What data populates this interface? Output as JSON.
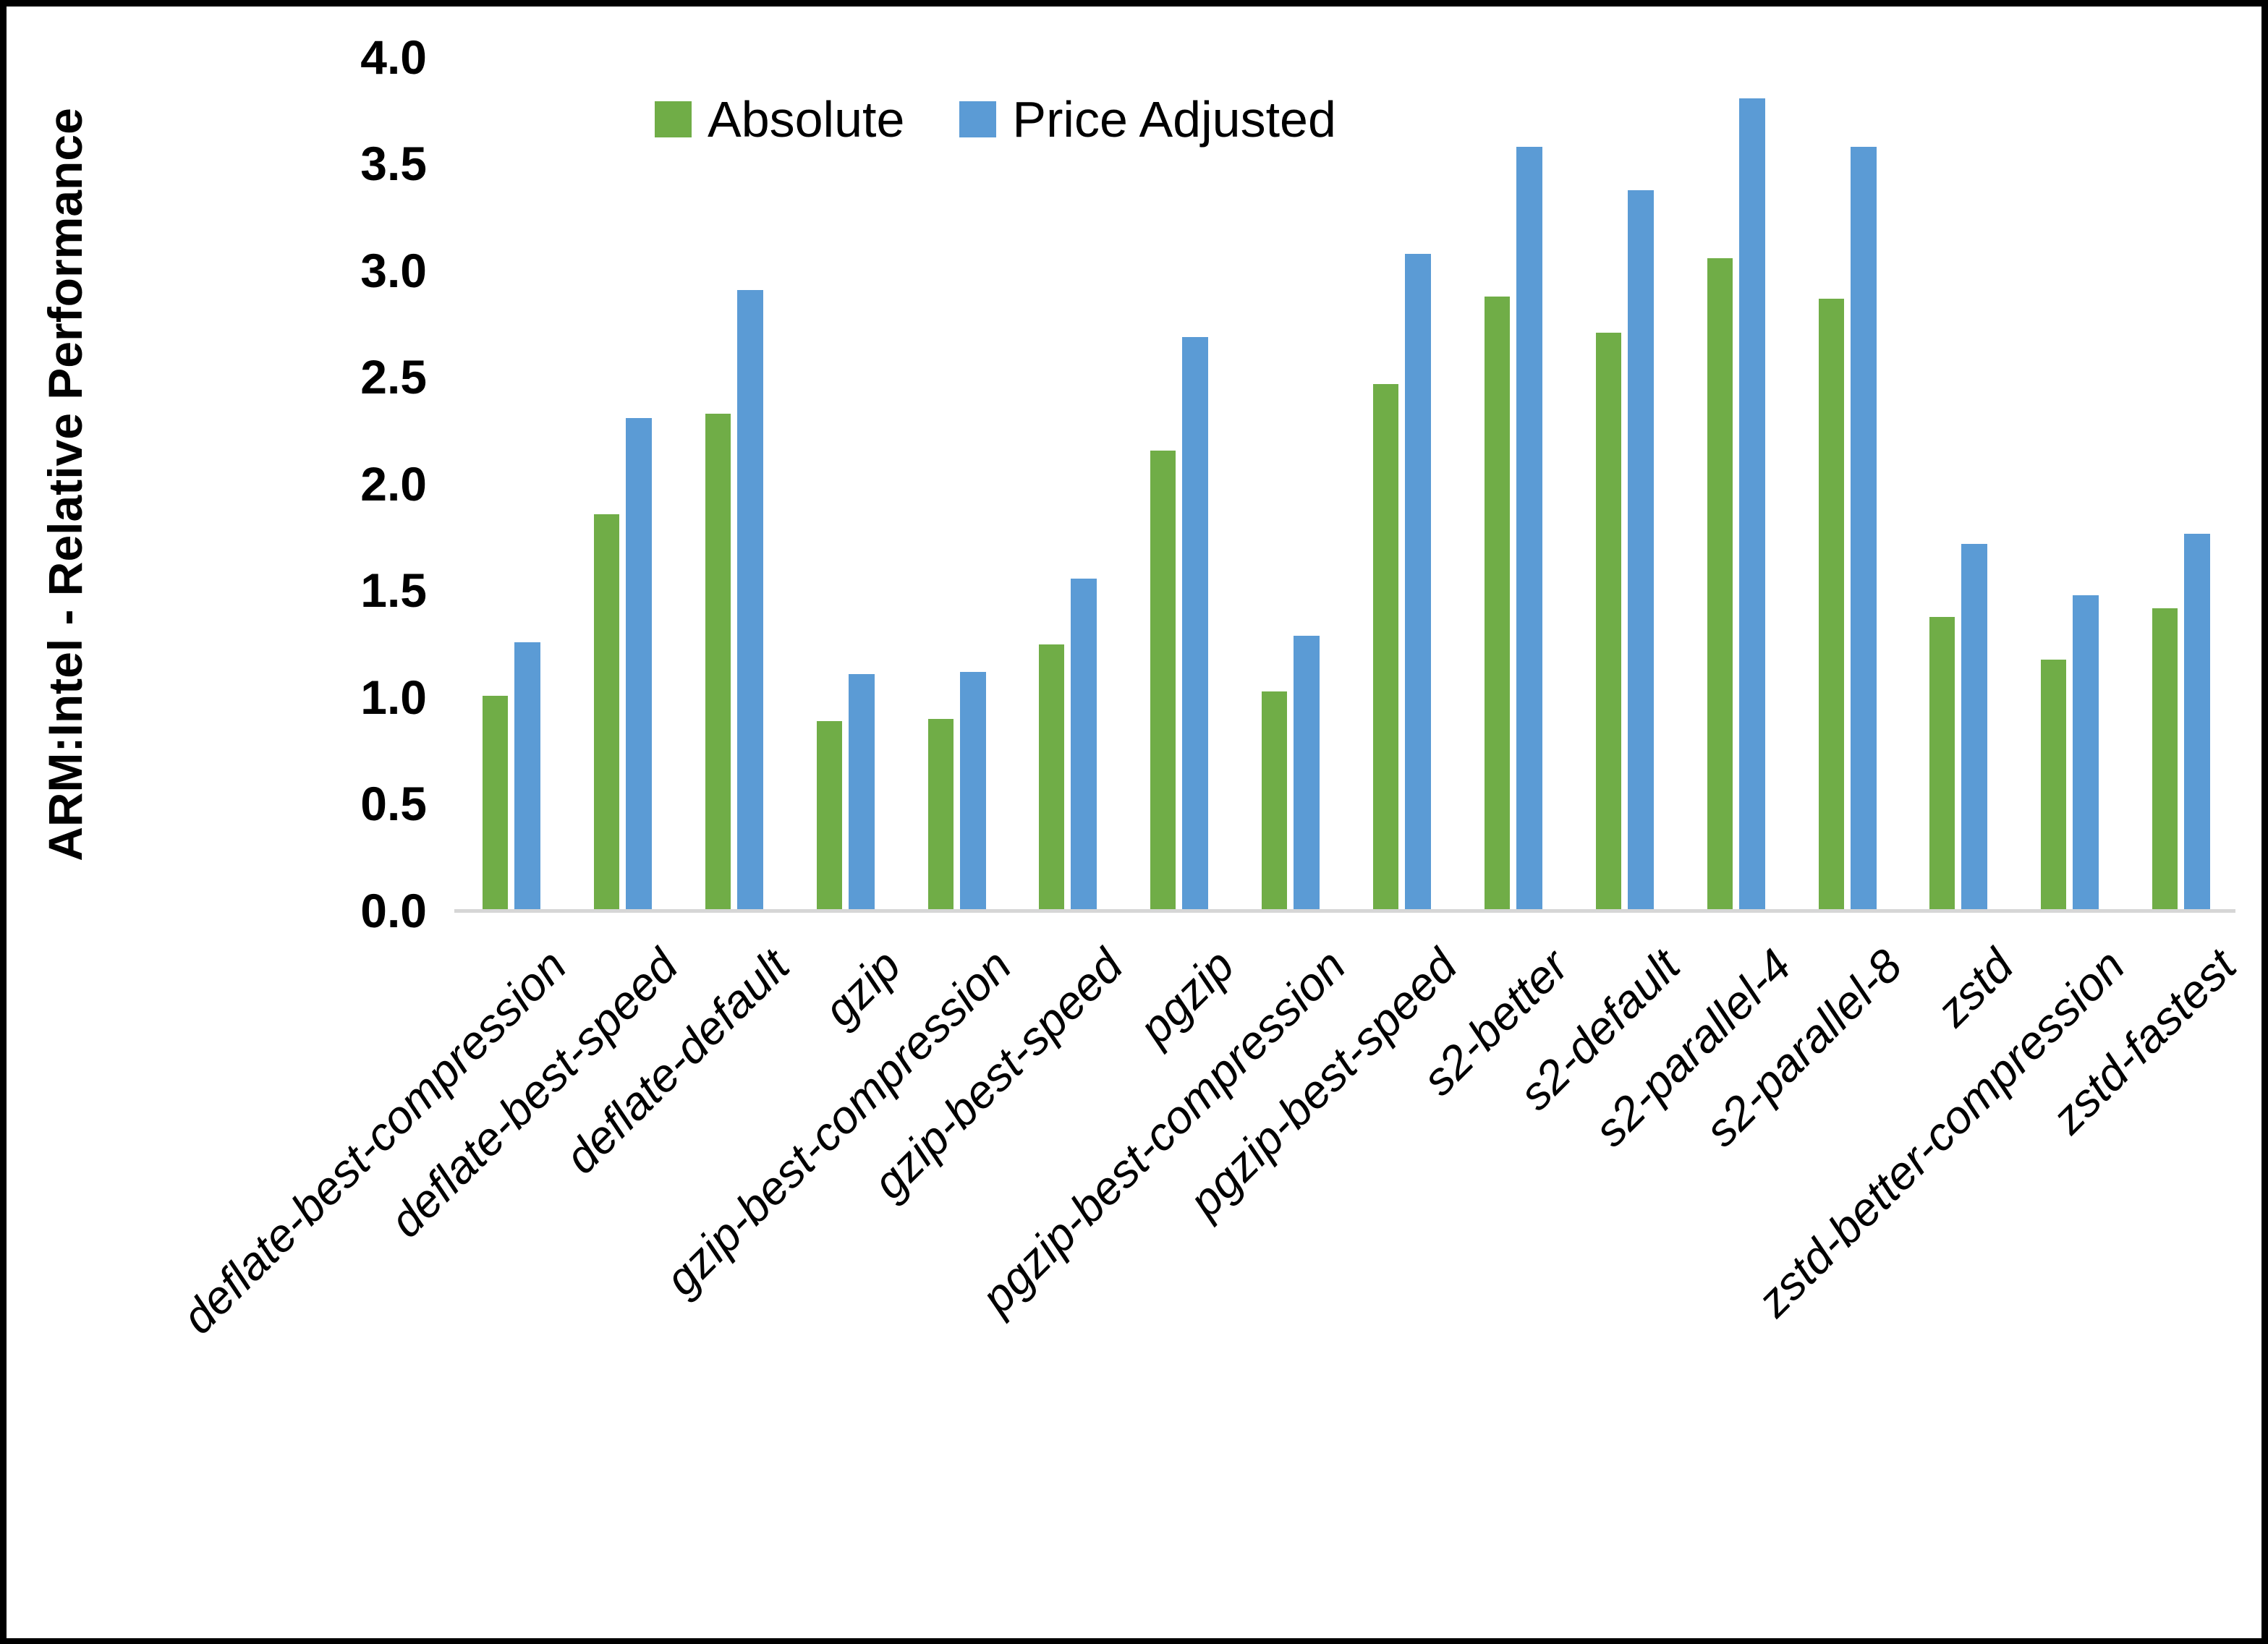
{
  "chart_data": {
    "type": "bar",
    "title": "",
    "xlabel": "",
    "ylabel": "ARM:Intel - Relative Performance",
    "ylim": [
      0.0,
      4.0
    ],
    "ytick_step": 0.5,
    "ytick_labels": [
      "4.0",
      "3.5",
      "3.0",
      "2.5",
      "2.0",
      "1.5",
      "1.0",
      "0.5",
      "0.0"
    ],
    "grid": false,
    "legend_position": "top-center",
    "categories": [
      "deflate-best-compression",
      "deflate-best-speed",
      "deflate-default",
      "gzip",
      "gzip-best-compression",
      "gzip-best-speed",
      "pgzip",
      "pgzip-best-compression",
      "pgzip-best-speed",
      "s2-better",
      "s2-default",
      "s2-parallel-4",
      "s2-parallel-8",
      "zstd",
      "zstd-better-compression",
      "zstd-fastest"
    ],
    "series": [
      {
        "name": "Absolute",
        "color": "#70AD47",
        "values": [
          1.0,
          1.85,
          2.32,
          0.88,
          0.89,
          1.24,
          2.15,
          1.02,
          2.46,
          2.87,
          2.7,
          3.05,
          2.86,
          1.37,
          1.17,
          1.41
        ]
      },
      {
        "name": "Price Adjusted",
        "color": "#5B9BD5",
        "values": [
          1.25,
          2.3,
          2.9,
          1.1,
          1.11,
          1.55,
          2.68,
          1.28,
          3.07,
          3.57,
          3.37,
          3.8,
          3.57,
          1.71,
          1.47,
          1.76
        ]
      }
    ]
  },
  "style_colors": {
    "axis_line": "#d6d6d6",
    "text": "#000000",
    "frame": "#000000",
    "background": "#ffffff"
  }
}
